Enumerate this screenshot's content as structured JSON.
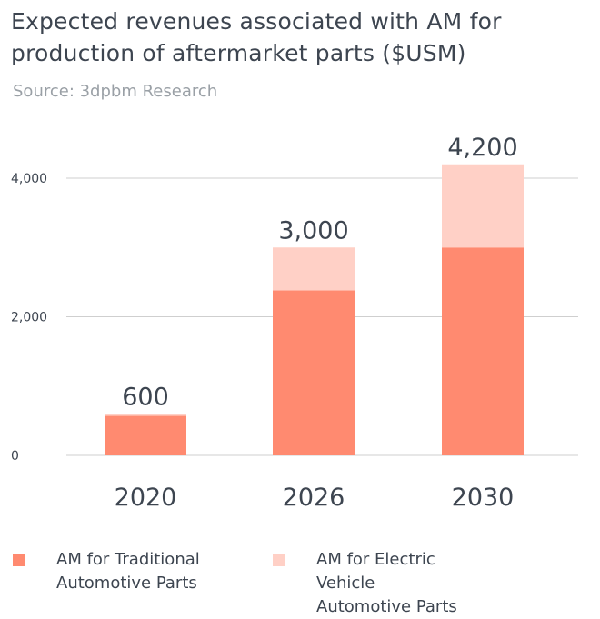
{
  "title": "Expected revenues associated with AM for production of aftermarket parts ($USM)",
  "source": "Source: 3dpbm Research",
  "colors": {
    "traditional": "#FF8A70",
    "electric": "#FFD0C6",
    "grid": "#cfcfcf",
    "text": "#3d4550"
  },
  "chart_data": {
    "type": "bar",
    "stacked": true,
    "categories": [
      "2020",
      "2026",
      "2030"
    ],
    "series": [
      {
        "name": "AM for Traditional Automotive Parts",
        "values": [
          570,
          2380,
          3000
        ]
      },
      {
        "name": "AM for Electric Vehicle Automotive Parts",
        "values": [
          30,
          620,
          1200
        ]
      }
    ],
    "totals": [
      "600",
      "3,000",
      "4,200"
    ],
    "yticks": [
      0,
      2000,
      4000
    ],
    "ytick_labels": [
      "0",
      "2,000",
      "4,000"
    ],
    "ylim": [
      0,
      4000
    ],
    "grid": true,
    "legend_position": "bottom"
  },
  "legend": [
    {
      "line1": "AM for Traditional",
      "line2": "Automotive Parts"
    },
    {
      "line1": "AM for Electric Vehicle",
      "line2": "Automotive Parts"
    }
  ]
}
